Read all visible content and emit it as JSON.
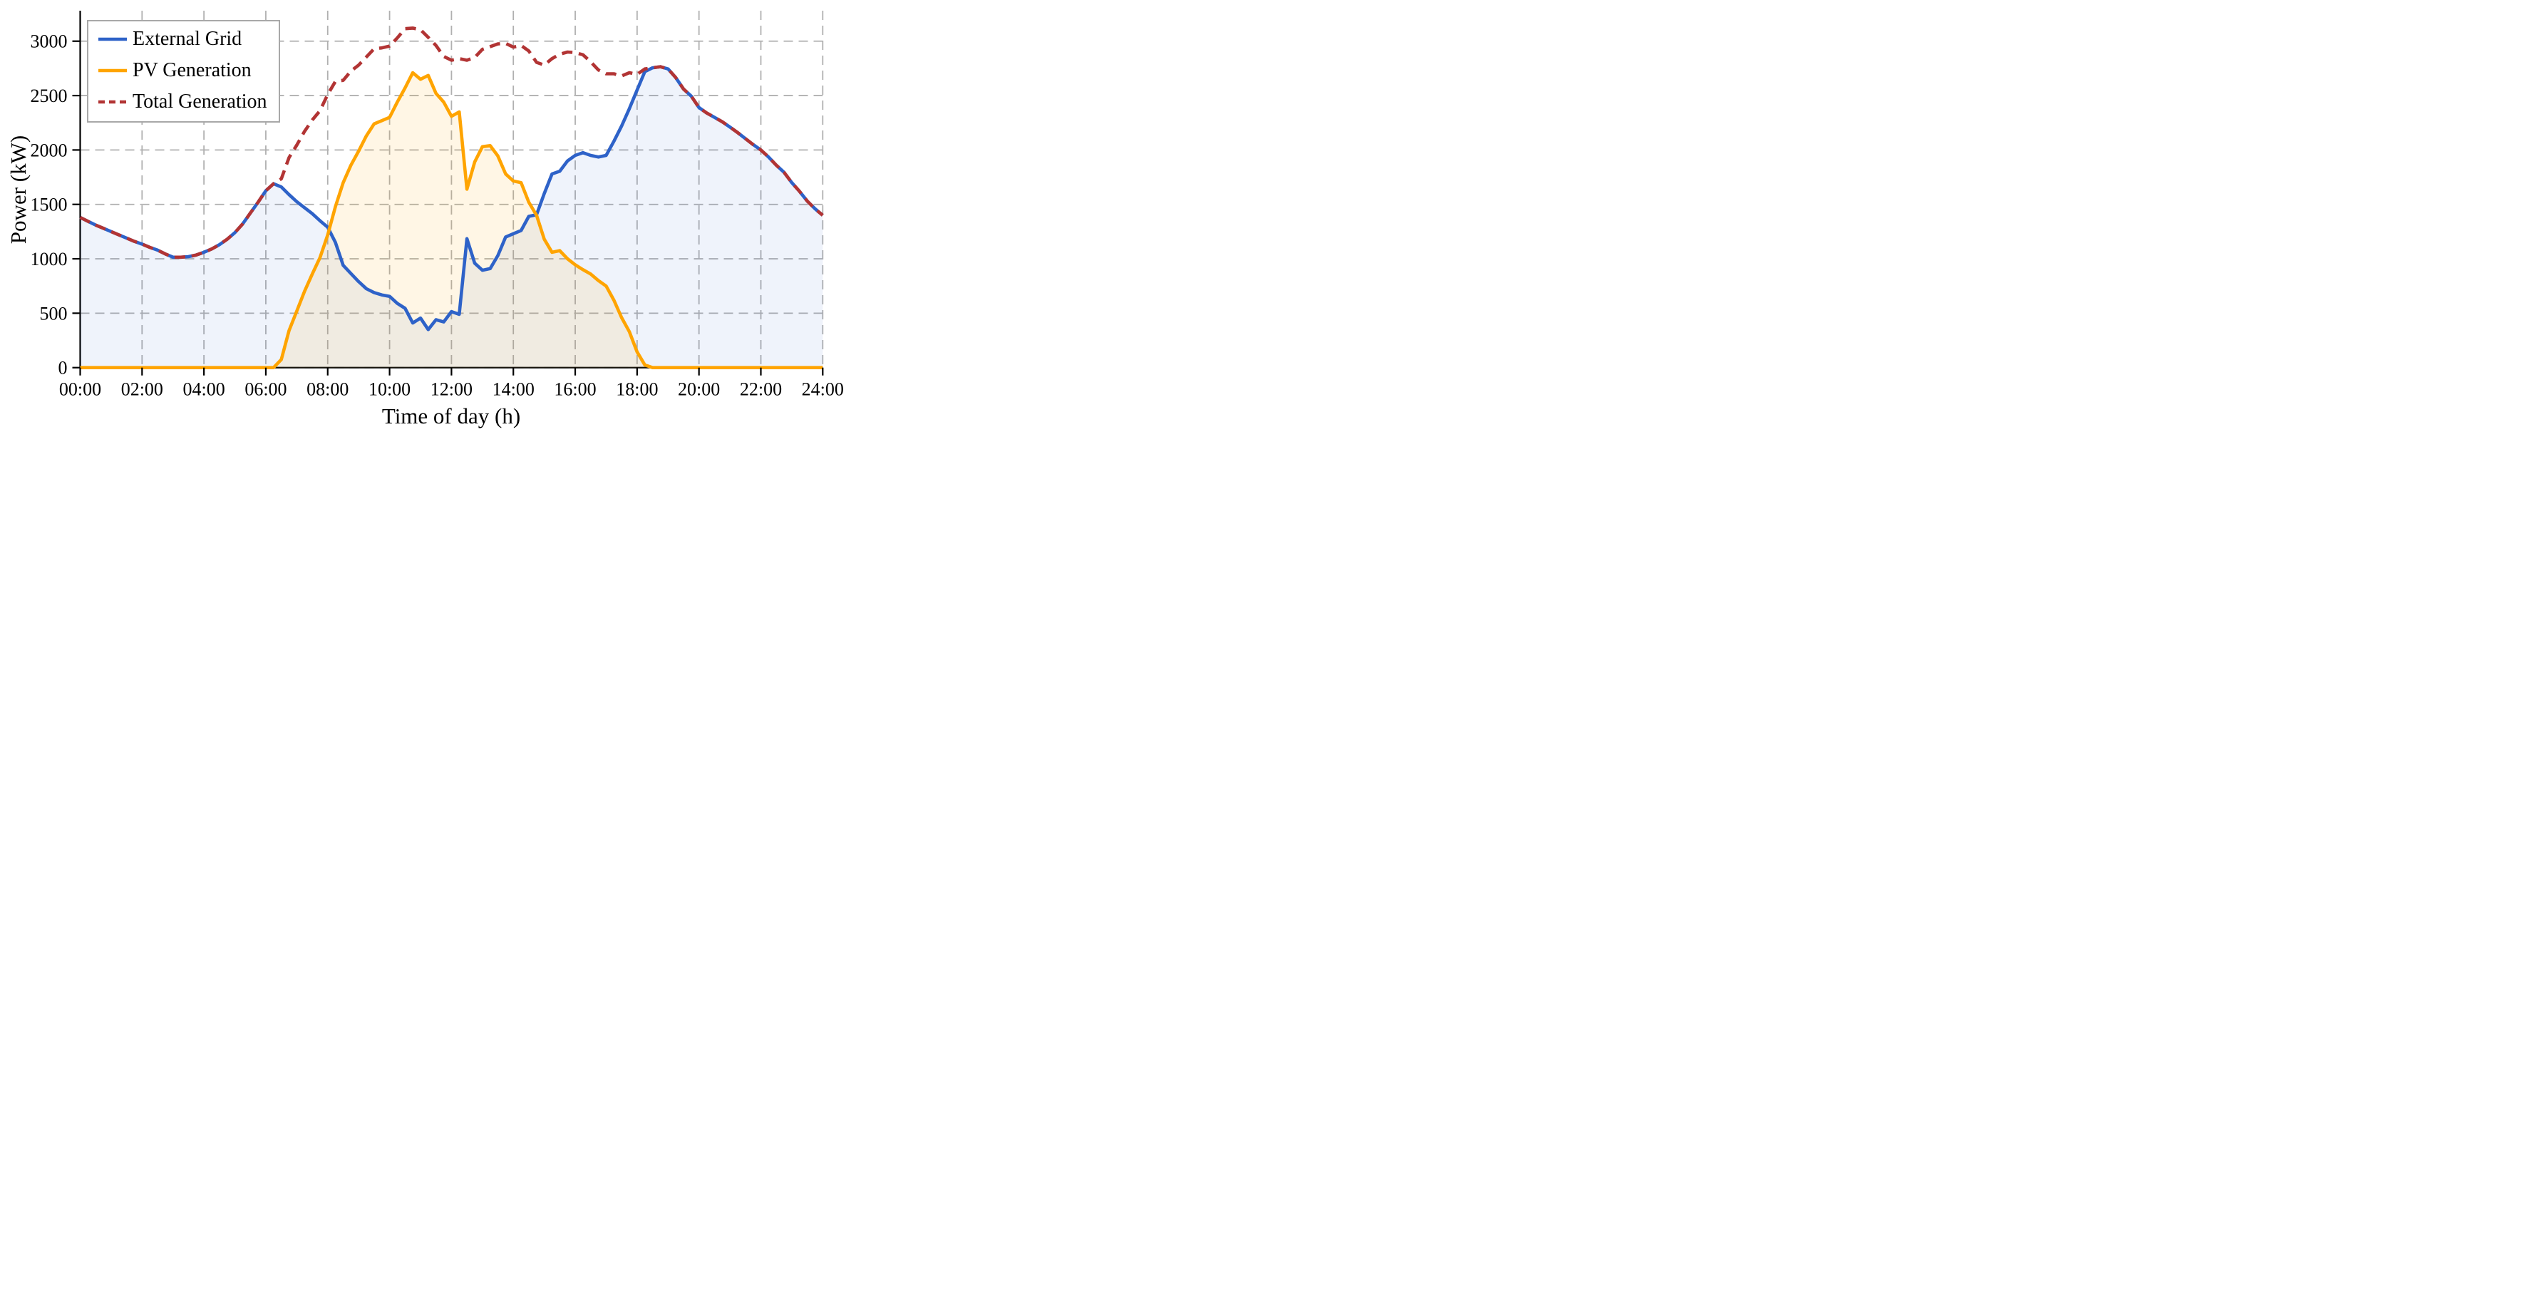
{
  "chart_data": {
    "type": "line",
    "title": "",
    "xlabel": "Time of day (h)",
    "ylabel": "Power (kW)",
    "xlim": [
      0,
      24
    ],
    "ylim": [
      0,
      3280
    ],
    "grid": true,
    "legend_position": "upper-left",
    "x_hours": [
      0,
      0.25,
      0.5,
      0.75,
      1,
      1.25,
      1.5,
      1.75,
      2,
      2.25,
      2.5,
      2.75,
      3,
      3.25,
      3.5,
      3.75,
      4,
      4.25,
      4.5,
      4.75,
      5,
      5.25,
      5.5,
      5.75,
      6,
      6.25,
      6.5,
      6.75,
      7,
      7.25,
      7.5,
      7.75,
      8,
      8.25,
      8.5,
      8.75,
      9,
      9.25,
      9.5,
      9.75,
      10,
      10.25,
      10.5,
      10.75,
      11,
      11.25,
      11.5,
      11.75,
      12,
      12.25,
      12.5,
      12.75,
      13,
      13.25,
      13.5,
      13.75,
      14,
      14.25,
      14.5,
      14.75,
      15,
      15.25,
      15.5,
      15.75,
      16,
      16.25,
      16.5,
      16.75,
      17,
      17.25,
      17.5,
      17.75,
      18,
      18.25,
      18.5,
      18.75,
      19,
      19.25,
      19.5,
      19.75,
      20,
      20.25,
      20.5,
      20.75,
      21,
      21.25,
      21.5,
      21.75,
      22,
      22.25,
      22.5,
      22.75,
      23,
      23.25,
      23.5,
      23.75,
      24
    ],
    "series": [
      {
        "name": "External Grid",
        "color": "#2e62c8",
        "style": "solid",
        "fill": true,
        "fill_color": "rgba(46,98,200,0.08)",
        "values": [
          1380,
          1345,
          1310,
          1280,
          1250,
          1220,
          1190,
          1160,
          1135,
          1105,
          1080,
          1045,
          1015,
          1015,
          1020,
          1035,
          1060,
          1090,
          1130,
          1180,
          1240,
          1320,
          1420,
          1520,
          1625,
          1690,
          1660,
          1590,
          1525,
          1470,
          1415,
          1350,
          1290,
          1150,
          940,
          865,
          790,
          725,
          690,
          668,
          655,
          590,
          545,
          410,
          455,
          350,
          440,
          420,
          515,
          490,
          1185,
          960,
          895,
          910,
          1030,
          1200,
          1230,
          1260,
          1390,
          1405,
          1600,
          1780,
          1805,
          1900,
          1950,
          1975,
          1950,
          1935,
          1950,
          2080,
          2220,
          2380,
          2550,
          2720,
          2755,
          2765,
          2745,
          2665,
          2560,
          2495,
          2390,
          2340,
          2300,
          2260,
          2210,
          2160,
          2105,
          2050,
          2000,
          1935,
          1860,
          1795,
          1700,
          1620,
          1530,
          1460,
          1400
        ]
      },
      {
        "name": "PV Generation",
        "color": "#ffa400",
        "style": "solid",
        "fill": true,
        "fill_color": "rgba(255,164,0,0.10)",
        "values": [
          0,
          0,
          0,
          0,
          0,
          0,
          0,
          0,
          0,
          0,
          0,
          0,
          0,
          0,
          0,
          0,
          0,
          0,
          0,
          0,
          0,
          0,
          0,
          0,
          0,
          0,
          75,
          340,
          520,
          700,
          860,
          1010,
          1220,
          1480,
          1700,
          1860,
          1990,
          2130,
          2240,
          2270,
          2300,
          2440,
          2570,
          2710,
          2650,
          2685,
          2520,
          2440,
          2310,
          2350,
          1640,
          1890,
          2030,
          2040,
          1945,
          1780,
          1715,
          1700,
          1520,
          1400,
          1180,
          1060,
          1075,
          1000,
          945,
          900,
          860,
          800,
          750,
          620,
          460,
          330,
          145,
          25,
          0,
          0,
          0,
          0,
          0,
          0,
          0,
          0,
          0,
          0,
          0,
          0,
          0,
          0,
          0,
          0,
          0,
          0,
          0,
          0,
          0,
          0,
          0
        ]
      },
      {
        "name": "Total Generation",
        "color": "#b23434",
        "style": "dashed",
        "fill": false,
        "values": [
          1380,
          1345,
          1310,
          1280,
          1250,
          1220,
          1190,
          1160,
          1135,
          1105,
          1080,
          1045,
          1015,
          1015,
          1020,
          1035,
          1060,
          1090,
          1130,
          1180,
          1240,
          1320,
          1420,
          1520,
          1625,
          1690,
          1735,
          1930,
          2045,
          2170,
          2275,
          2360,
          2510,
          2630,
          2640,
          2725,
          2780,
          2855,
          2930,
          2938,
          2955,
          3030,
          3115,
          3120,
          3105,
          3035,
          2960,
          2860,
          2825,
          2840,
          2825,
          2850,
          2925,
          2950,
          2975,
          2980,
          2945,
          2960,
          2910,
          2805,
          2780,
          2840,
          2880,
          2900,
          2895,
          2875,
          2810,
          2735,
          2700,
          2700,
          2680,
          2710,
          2695,
          2745,
          2755,
          2765,
          2745,
          2665,
          2560,
          2495,
          2390,
          2340,
          2300,
          2260,
          2210,
          2160,
          2105,
          2050,
          2000,
          1935,
          1860,
          1795,
          1700,
          1620,
          1530,
          1460,
          1400
        ]
      }
    ],
    "xticks": {
      "values": [
        0,
        2,
        4,
        6,
        8,
        10,
        12,
        14,
        16,
        18,
        20,
        22,
        24
      ],
      "labels": [
        "00:00",
        "02:00",
        "04:00",
        "06:00",
        "08:00",
        "10:00",
        "12:00",
        "14:00",
        "16:00",
        "18:00",
        "20:00",
        "22:00",
        "24:00"
      ]
    },
    "yticks": {
      "values": [
        0,
        500,
        1000,
        1500,
        2000,
        2500,
        3000
      ],
      "labels": [
        "0",
        "500",
        "1000",
        "1500",
        "2000",
        "2500",
        "3000"
      ]
    },
    "colors": {
      "grid_line": "#b0b0b0",
      "spine": "#000000",
      "legend_border": "#a8a8a8",
      "background": "#ffffff"
    }
  }
}
